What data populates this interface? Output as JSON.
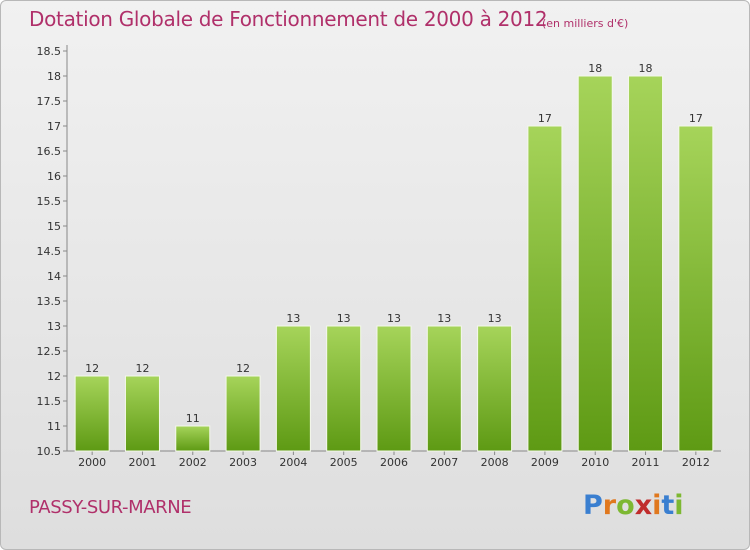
{
  "header": {
    "title": "Dotation Globale de Fonctionnement de 2000 à 2012",
    "unit": "(en milliers d'€)"
  },
  "footer": {
    "commune": "PASSY-SUR-MARNE",
    "brand": "Proxiti",
    "brand_letters": [
      "P",
      "r",
      "o",
      "x",
      "i",
      "t",
      "i"
    ],
    "brand_colors": [
      "#3a7fd0",
      "#e0781e",
      "#7db832",
      "#c02c2c",
      "#e0781e",
      "#3a7fd0",
      "#7db832"
    ]
  },
  "chart_data": {
    "type": "bar",
    "title": "Dotation Globale de Fonctionnement de 2000 à 2012",
    "subtitle": "(en milliers d'€)",
    "categories": [
      "2000",
      "2001",
      "2002",
      "2003",
      "2004",
      "2005",
      "2006",
      "2007",
      "2008",
      "2009",
      "2010",
      "2011",
      "2012"
    ],
    "values": [
      12,
      12,
      11,
      12,
      13,
      13,
      13,
      13,
      13,
      17,
      18,
      18,
      17
    ],
    "labels": [
      "12",
      "12",
      "11",
      "12",
      "13",
      "13",
      "13",
      "13",
      "13",
      "17",
      "18",
      "18",
      "17"
    ],
    "ylim": [
      10.5,
      18.5
    ],
    "yticks": [
      "10.5",
      "11",
      "11.5",
      "12",
      "12.5",
      "13",
      "13.5",
      "14",
      "14.5",
      "15",
      "15.5",
      "16",
      "16.5",
      "17",
      "17.5",
      "18",
      "18.5"
    ],
    "xlabel": "",
    "ylabel": "",
    "grid": false,
    "colors": {
      "bar_top": "#a6d45a",
      "bar_bottom": "#5e9a14",
      "bar_edge": "#f4f8ea",
      "axis": "#888888"
    }
  }
}
